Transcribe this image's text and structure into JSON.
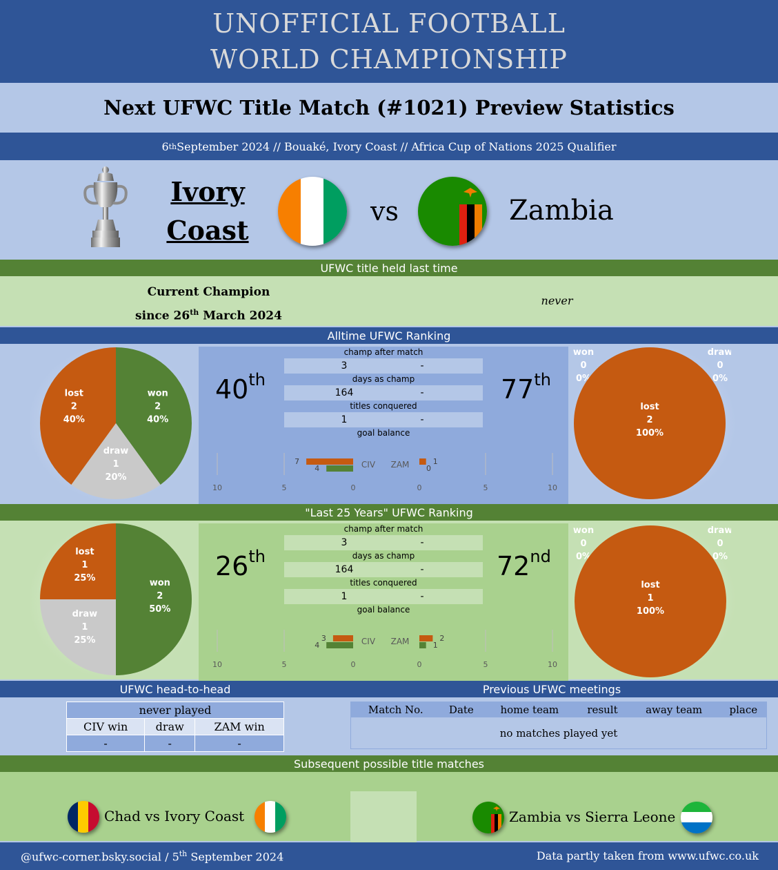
{
  "header": {
    "title_line1": "UNOFFICIAL FOOTBALL",
    "title_line2": "WORLD CHAMPIONSHIP",
    "subtitle": "Next UFWC Title Match (#1021) Preview Statistics",
    "date_day": "6",
    "date_suffix": "th",
    "info_rest": " September 2024 // Bouaké, Ivory Coast // Africa Cup of Nations 2025 Qualifier"
  },
  "match": {
    "home_line1": "Ivory",
    "home_line2": "Coast",
    "away": "Zambia",
    "vs": "vs"
  },
  "held": {
    "section_title": "UFWC title held last time",
    "home_line1": "Current Champion",
    "home_line2_pre": "since 26",
    "home_line2_sup": "th",
    "home_line2_post": " March 2024",
    "away": "never"
  },
  "alltime": {
    "section_title": "Alltime UFWC Ranking",
    "home_rank": "40",
    "home_rank_suffix": "th",
    "away_rank": "77",
    "away_rank_suffix": "th",
    "labels": [
      "champ after match",
      "days as champ",
      "titles conquered",
      "goal balance"
    ],
    "stats": [
      {
        "home": "3",
        "away": "-"
      },
      {
        "home": "164",
        "away": "-"
      },
      {
        "home": "1",
        "away": "-"
      }
    ]
  },
  "last25": {
    "section_title": "\"Last 25 Years\" UFWC Ranking",
    "home_rank": "26",
    "home_rank_suffix": "th",
    "away_rank": "72",
    "away_rank_suffix": "nd",
    "labels": [
      "champ after match",
      "days as champ",
      "titles conquered",
      "goal balance"
    ],
    "stats": [
      {
        "home": "3",
        "away": "-"
      },
      {
        "home": "164",
        "away": "-"
      },
      {
        "home": "1",
        "away": "-"
      }
    ]
  },
  "h2h": {
    "section_title": "UFWC head-to-head",
    "header": "never played",
    "cols": [
      "CIV win",
      "draw",
      "ZAM win"
    ],
    "values": [
      "-",
      "-",
      "-"
    ]
  },
  "previous": {
    "section_title": "Previous UFWC meetings",
    "cols": [
      "Match No.",
      "Date",
      "home team",
      "result",
      "away team",
      "place"
    ],
    "empty": "no matches played yet"
  },
  "next": {
    "section_title": "Subsequent possible title matches",
    "left": "Chad vs Ivory Coast",
    "right": "Zambia vs Sierra Leone"
  },
  "footer": {
    "left_pre": "@ufwc-corner.bsky.social / 5",
    "left_sup": "th",
    "left_post": " September 2024",
    "right": "Data partly taken from www.ufwc.co.uk"
  },
  "colors": {
    "won": "#548235",
    "lost": "#c55a11",
    "draw": "#c9c9c9",
    "dark_blue": "#2f5597",
    "green": "#548235"
  },
  "chart_data": [
    {
      "type": "pie",
      "id": "alltime-home",
      "slices": [
        {
          "label": "won",
          "value": 2,
          "pct": "40%"
        },
        {
          "label": "draw",
          "value": 1,
          "pct": "20%"
        },
        {
          "label": "lost",
          "value": 2,
          "pct": "40%"
        }
      ]
    },
    {
      "type": "pie",
      "id": "alltime-away",
      "slices": [
        {
          "label": "won",
          "value": 0,
          "pct": "0%"
        },
        {
          "label": "draw",
          "value": 0,
          "pct": "0%"
        },
        {
          "label": "lost",
          "value": 2,
          "pct": "100%"
        }
      ]
    },
    {
      "type": "bar",
      "id": "alltime-goals",
      "xlim": [
        0,
        10
      ],
      "ticks": [
        "10",
        "5",
        "0",
        "0",
        "5",
        "10"
      ],
      "teams": [
        "CIV",
        "ZAM"
      ],
      "series": [
        {
          "team": "CIV",
          "lost_bar": 7,
          "won_bar": 4
        },
        {
          "team": "ZAM",
          "lost_bar": 1,
          "won_bar": 0
        }
      ]
    },
    {
      "type": "pie",
      "id": "last25-home",
      "slices": [
        {
          "label": "won",
          "value": 2,
          "pct": "50%"
        },
        {
          "label": "draw",
          "value": 1,
          "pct": "25%"
        },
        {
          "label": "lost",
          "value": 1,
          "pct": "25%"
        }
      ]
    },
    {
      "type": "pie",
      "id": "last25-away",
      "slices": [
        {
          "label": "won",
          "value": 0,
          "pct": "0%"
        },
        {
          "label": "draw",
          "value": 0,
          "pct": "0%"
        },
        {
          "label": "lost",
          "value": 1,
          "pct": "100%"
        }
      ]
    },
    {
      "type": "bar",
      "id": "last25-goals",
      "xlim": [
        0,
        10
      ],
      "ticks": [
        "10",
        "5",
        "0",
        "0",
        "5",
        "10"
      ],
      "teams": [
        "CIV",
        "ZAM"
      ],
      "series": [
        {
          "team": "CIV",
          "lost_bar": 3,
          "won_bar": 4
        },
        {
          "team": "ZAM",
          "lost_bar": 2,
          "won_bar": 1
        }
      ]
    }
  ]
}
